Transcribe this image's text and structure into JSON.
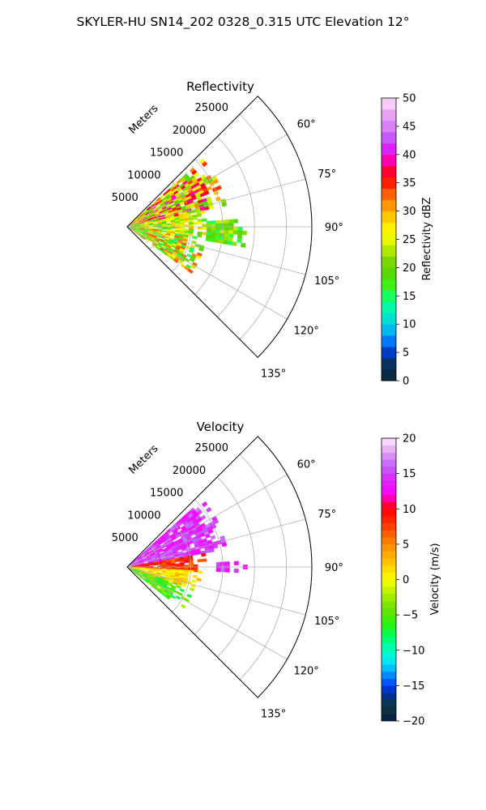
{
  "figure_title": "SKYLER-HU  SN14_202  0328_0.315 UTC Elevation 12°",
  "chart_data": [
    {
      "type": "heatmap",
      "title": "Reflectivity",
      "projection": "polar-sector",
      "azimuth_range_deg": [
        45,
        135
      ],
      "azimuth_ticks": [
        "60°",
        "75°",
        "90°",
        "105°",
        "120°",
        "135°"
      ],
      "azimuth_tick_values": [
        60,
        75,
        90,
        105,
        120,
        135
      ],
      "range_label": "Meters",
      "range_max_m": 29000,
      "range_ticks": [
        "5000",
        "10000",
        "15000",
        "20000",
        "25000"
      ],
      "range_tick_values": [
        5000,
        10000,
        15000,
        20000,
        25000
      ],
      "grid": true,
      "colorbar": {
        "label": "Reflectivity dBZ",
        "range": [
          0,
          50
        ],
        "ticks": [
          "0",
          "5",
          "10",
          "15",
          "20",
          "25",
          "30",
          "35",
          "40",
          "45",
          "50"
        ],
        "tick_values": [
          0,
          5,
          10,
          15,
          20,
          25,
          30,
          35,
          40,
          45,
          50
        ],
        "stops": [
          [
            0,
            "#0a1a4a"
          ],
          [
            2,
            "#0e3a3a"
          ],
          [
            4,
            "#002a8a"
          ],
          [
            6,
            "#0050ff"
          ],
          [
            8,
            "#00a0ff"
          ],
          [
            10,
            "#00d0e0"
          ],
          [
            12,
            "#00f0c0"
          ],
          [
            14,
            "#00ff90"
          ],
          [
            16,
            "#30ff30"
          ],
          [
            18,
            "#50e000"
          ],
          [
            20,
            "#60d000"
          ],
          [
            22,
            "#90e000"
          ],
          [
            24,
            "#d0f000"
          ],
          [
            26,
            "#ffff00"
          ],
          [
            28,
            "#ffe000"
          ],
          [
            30,
            "#ffb000"
          ],
          [
            32,
            "#ff8000"
          ],
          [
            34,
            "#ff4000"
          ],
          [
            36,
            "#ff0000"
          ],
          [
            38,
            "#ff0060"
          ],
          [
            40,
            "#ff00ff"
          ],
          [
            42,
            "#c040ff"
          ],
          [
            44,
            "#d070ff"
          ],
          [
            46,
            "#e090f0"
          ],
          [
            48,
            "#f0b0f0"
          ],
          [
            50,
            "#ffe8ff"
          ]
        ]
      },
      "echo_regions": [
        {
          "az": [
            48,
            78
          ],
          "r": [
            600,
            15800
          ],
          "values": [
            18,
            40
          ]
        },
        {
          "az": [
            78,
            96
          ],
          "r": [
            600,
            12500
          ],
          "values": [
            16,
            30
          ]
        },
        {
          "az": [
            96,
            126
          ],
          "r": [
            600,
            12000
          ],
          "values": [
            14,
            34
          ]
        },
        {
          "az": [
            86,
            100
          ],
          "r": [
            12500,
            18500
          ],
          "values": [
            14,
            24
          ]
        }
      ]
    },
    {
      "type": "heatmap",
      "title": "Velocity",
      "projection": "polar-sector",
      "azimuth_range_deg": [
        45,
        135
      ],
      "azimuth_ticks": [
        "60°",
        "75°",
        "90°",
        "105°",
        "120°",
        "135°"
      ],
      "azimuth_tick_values": [
        60,
        75,
        90,
        105,
        120,
        135
      ],
      "range_label": "Meters",
      "range_max_m": 29000,
      "range_ticks": [
        "5000",
        "10000",
        "15000",
        "20000",
        "25000"
      ],
      "range_tick_values": [
        5000,
        10000,
        15000,
        20000,
        25000
      ],
      "grid": true,
      "colorbar": {
        "label": "Velocity (m/s)",
        "range": [
          -20,
          20
        ],
        "ticks": [
          "−20",
          "−15",
          "−10",
          "−5",
          "0",
          "5",
          "10",
          "15",
          "20"
        ],
        "tick_values": [
          -20,
          -15,
          -10,
          -5,
          0,
          5,
          10,
          15,
          20
        ],
        "stops": [
          [
            -20,
            "#0a1a4a"
          ],
          [
            -18,
            "#0e3a3a"
          ],
          [
            -16,
            "#002aa0"
          ],
          [
            -15,
            "#0040ff"
          ],
          [
            -13,
            "#00a0ff"
          ],
          [
            -12,
            "#00e0ff"
          ],
          [
            -10,
            "#00ffc0"
          ],
          [
            -8,
            "#00ff60"
          ],
          [
            -6,
            "#30f000"
          ],
          [
            -4,
            "#70e000"
          ],
          [
            -2,
            "#b0f000"
          ],
          [
            0,
            "#ffff00"
          ],
          [
            2,
            "#ffd000"
          ],
          [
            4,
            "#ffa000"
          ],
          [
            6,
            "#ff7000"
          ],
          [
            8,
            "#ff3000"
          ],
          [
            10,
            "#ff0000"
          ],
          [
            11,
            "#ff0060"
          ],
          [
            12,
            "#ff00ff"
          ],
          [
            14,
            "#e020ff"
          ],
          [
            16,
            "#c060ff"
          ],
          [
            18,
            "#e0a0f0"
          ],
          [
            20,
            "#ffe8ff"
          ]
        ]
      },
      "echo_regions": [
        {
          "az": [
            48,
            80
          ],
          "r": [
            600,
            15800
          ],
          "values": [
            12,
            17
          ]
        },
        {
          "az": [
            80,
            93
          ],
          "r": [
            600,
            12500
          ],
          "values": [
            6,
            11
          ]
        },
        {
          "az": [
            93,
            108
          ],
          "r": [
            600,
            11500
          ],
          "values": [
            -1,
            4
          ]
        },
        {
          "az": [
            108,
            127
          ],
          "r": [
            600,
            10500
          ],
          "values": [
            -8,
            -2
          ]
        },
        {
          "az": [
            87,
            92
          ],
          "r": [
            14000,
            18500
          ],
          "values": [
            12,
            16
          ]
        }
      ]
    }
  ]
}
